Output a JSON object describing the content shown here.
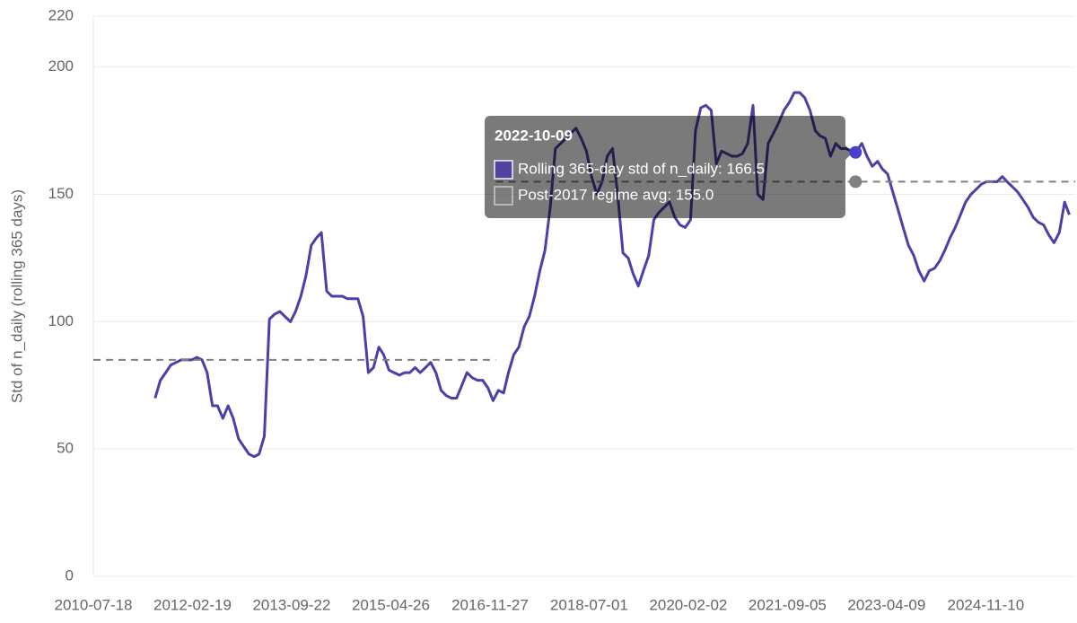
{
  "chart_data": {
    "type": "line",
    "y_label": "Std of n_daily (rolling 365 days)",
    "ylim": [
      0,
      220
    ],
    "yticks": [
      0,
      50,
      100,
      150,
      200,
      220
    ],
    "xlim": [
      "2010-07-18",
      "2026-04-18"
    ],
    "xticks": [
      "2010-07-18",
      "2012-02-19",
      "2013-09-22",
      "2015-04-26",
      "2016-11-27",
      "2018-07-01",
      "2020-02-02",
      "2021-09-05",
      "2023-04-09",
      "2024-11-10"
    ],
    "grid": true,
    "x": [
      "2011-07-15",
      "2011-08-15",
      "2011-09-15",
      "2011-10-15",
      "2011-11-15",
      "2011-12-15",
      "2012-01-15",
      "2012-02-15",
      "2012-03-15",
      "2012-04-15",
      "2012-05-15",
      "2012-06-15",
      "2012-07-15",
      "2012-08-15",
      "2012-09-15",
      "2012-10-15",
      "2012-11-15",
      "2012-12-15",
      "2013-01-15",
      "2013-02-15",
      "2013-03-15",
      "2013-04-15",
      "2013-05-15",
      "2013-06-15",
      "2013-07-15",
      "2013-08-15",
      "2013-09-15",
      "2013-10-15",
      "2013-11-15",
      "2013-12-15",
      "2014-01-15",
      "2014-02-15",
      "2014-03-15",
      "2014-04-15",
      "2014-05-15",
      "2014-06-15",
      "2014-07-15",
      "2014-08-15",
      "2014-09-15",
      "2014-10-15",
      "2014-11-15",
      "2014-12-15",
      "2015-01-15",
      "2015-02-15",
      "2015-03-15",
      "2015-04-15",
      "2015-05-15",
      "2015-06-15",
      "2015-07-15",
      "2015-08-15",
      "2015-09-15",
      "2015-10-15",
      "2015-11-15",
      "2015-12-15",
      "2016-01-15",
      "2016-02-15",
      "2016-03-15",
      "2016-04-15",
      "2016-05-15",
      "2016-06-15",
      "2016-07-15",
      "2016-08-15",
      "2016-09-15",
      "2016-10-15",
      "2016-11-15",
      "2016-12-15",
      "2017-01-15",
      "2017-02-15",
      "2017-03-15",
      "2017-04-15",
      "2017-05-15",
      "2017-06-15",
      "2017-07-15",
      "2017-08-15",
      "2017-09-15",
      "2017-10-15",
      "2017-11-15",
      "2017-12-15",
      "2018-01-15",
      "2018-02-15",
      "2018-03-15",
      "2018-04-15",
      "2018-05-15",
      "2018-06-15",
      "2018-07-15",
      "2018-08-15",
      "2018-09-15",
      "2018-10-15",
      "2018-11-15",
      "2018-12-15",
      "2019-01-15",
      "2019-02-15",
      "2019-03-15",
      "2019-04-15",
      "2019-05-15",
      "2019-06-15",
      "2019-07-15",
      "2019-08-15",
      "2019-09-15",
      "2019-10-15",
      "2019-11-15",
      "2019-12-15",
      "2020-01-15",
      "2020-02-15",
      "2020-03-15",
      "2020-04-15",
      "2020-05-15",
      "2020-06-15",
      "2020-07-15",
      "2020-08-15",
      "2020-09-15",
      "2020-10-15",
      "2020-11-15",
      "2020-12-15",
      "2021-01-15",
      "2021-02-15",
      "2021-03-15",
      "2021-04-15",
      "2021-05-15",
      "2021-06-15",
      "2021-07-15",
      "2021-08-15",
      "2021-09-15",
      "2021-10-15",
      "2021-11-15",
      "2021-12-15",
      "2022-01-15",
      "2022-02-15",
      "2022-03-15",
      "2022-04-15",
      "2022-05-15",
      "2022-06-15",
      "2022-07-15",
      "2022-08-15",
      "2022-09-15",
      "2022-10-09",
      "2022-11-15",
      "2022-12-15",
      "2023-01-15",
      "2023-02-15",
      "2023-03-15",
      "2023-04-15",
      "2023-05-15",
      "2023-06-15",
      "2023-07-15",
      "2023-08-15",
      "2023-09-15",
      "2023-10-15",
      "2023-11-15",
      "2023-12-15",
      "2024-01-15",
      "2024-02-15",
      "2024-03-15",
      "2024-04-15",
      "2024-05-15",
      "2024-06-15",
      "2024-07-15",
      "2024-08-15",
      "2024-09-15",
      "2024-10-15",
      "2024-11-15",
      "2024-12-15",
      "2025-01-15",
      "2025-02-15",
      "2025-03-15",
      "2025-04-15",
      "2025-05-15",
      "2025-06-15",
      "2025-07-15",
      "2025-08-15",
      "2025-09-15",
      "2025-10-15",
      "2025-11-15",
      "2025-12-15",
      "2026-01-15",
      "2026-02-15",
      "2026-03-15"
    ],
    "series": [
      {
        "name": "Rolling 365-day std of n_daily",
        "color": "#4b40a6",
        "values": [
          70,
          77,
          80,
          83,
          84,
          85,
          85,
          85,
          86,
          85,
          80,
          67,
          67,
          62,
          67,
          62,
          54,
          51,
          48,
          47,
          48,
          55,
          101,
          103,
          104,
          102,
          100,
          104,
          110,
          118,
          130,
          133,
          135,
          112,
          110,
          110,
          110,
          109,
          109,
          109,
          102,
          80,
          82,
          90,
          87,
          81,
          80,
          79,
          80,
          80,
          82,
          80,
          82,
          84,
          80,
          73,
          71,
          70,
          70,
          75,
          80,
          78,
          77,
          77,
          74,
          69,
          73,
          72,
          80,
          87,
          90,
          98,
          102,
          110,
          120,
          128,
          145,
          168,
          170,
          172,
          174,
          176,
          172,
          167,
          157,
          150,
          155,
          165,
          168,
          150,
          127,
          125,
          119,
          114,
          120,
          126,
          140,
          143,
          145,
          147,
          141,
          138,
          137,
          140,
          175,
          184,
          185,
          183,
          162,
          167,
          166,
          165,
          165,
          166,
          170,
          185,
          150,
          148,
          170,
          174,
          178,
          183,
          186,
          190,
          190,
          188,
          183,
          175,
          173,
          172,
          165,
          170,
          168,
          168,
          167,
          166.5,
          170,
          165,
          161,
          163,
          160,
          158,
          151,
          144,
          137,
          130,
          126,
          120,
          116,
          120,
          121,
          124,
          128,
          133,
          137,
          142,
          147,
          150,
          152,
          154,
          155,
          155,
          155,
          157,
          155,
          153,
          151,
          148,
          145,
          141,
          139,
          138,
          134,
          131,
          135,
          147,
          142
        ]
      },
      {
        "name": "Post-2017 regime avg",
        "color": "#808080",
        "dashed": true,
        "x": [
          "2017-01-01",
          "2026-04-18"
        ],
        "values": [
          155,
          155
        ]
      },
      {
        "color": "#808080",
        "dashed": true,
        "x": [
          "2010-07-18",
          "2016-12-31"
        ],
        "values": [
          85,
          85
        ]
      }
    ],
    "tooltip": {
      "title": "2022-10-09",
      "items": [
        "Rolling 365-day std of n_daily: 166.5",
        "Post-2017 regime avg: 155.0"
      ]
    }
  }
}
